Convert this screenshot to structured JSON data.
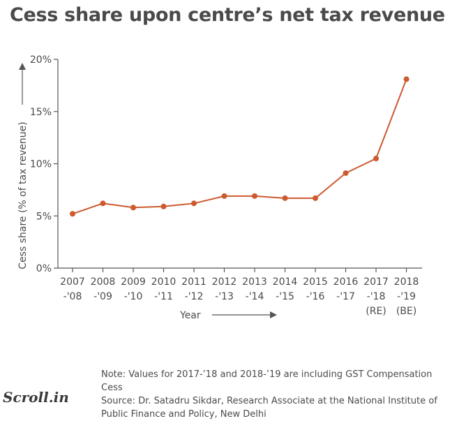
{
  "chart_data": {
    "type": "line",
    "title": "Cess share upon centre’s net tax revenue",
    "xlabel": "Year",
    "ylabel": "Cess share (% of tax revenue)",
    "ylim": [
      0,
      20
    ],
    "yticks": [
      "0%",
      "5%",
      "10%",
      "15%",
      "20%"
    ],
    "ytick_values": [
      0,
      5,
      10,
      15,
      20
    ],
    "categories": [
      [
        "2007",
        "-'08"
      ],
      [
        "2008",
        "-'09"
      ],
      [
        "2009",
        "-'10"
      ],
      [
        "2010",
        "-'11"
      ],
      [
        "2011",
        "-'12"
      ],
      [
        "2012",
        "-'13"
      ],
      [
        "2013",
        "-'14"
      ],
      [
        "2014",
        "-'15"
      ],
      [
        "2015",
        "-'16"
      ],
      [
        "2016",
        "-'17"
      ],
      [
        "2017",
        "-'18",
        "(RE)"
      ],
      [
        "2018",
        "-'19",
        "(BE)"
      ]
    ],
    "series": [
      {
        "name": "Cess share",
        "values": [
          5.2,
          6.2,
          5.8,
          5.9,
          6.2,
          6.9,
          6.9,
          6.7,
          6.7,
          9.1,
          10.5,
          18.1
        ]
      }
    ],
    "grid": false,
    "colors": {
      "line": "#cc5a2e",
      "axis": "#555555",
      "text": "#4a4a4a"
    }
  },
  "footer": {
    "note": "Note: Values for 2017-’18 and 2018-’19 are including GST Compensation Cess",
    "source": "Source:  Dr. Satadru Sikdar, Research Associate at the National Institute of Public Finance and Policy, New Delhi",
    "logo_text": "Scroll.in"
  }
}
